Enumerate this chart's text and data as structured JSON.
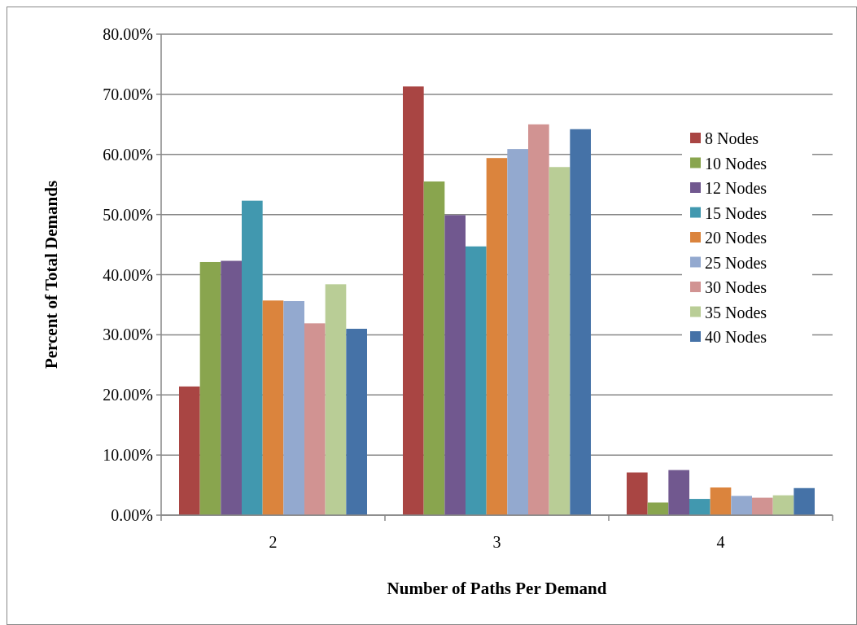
{
  "chart_data": {
    "type": "bar",
    "xlabel": "Number of Paths Per Demand",
    "ylabel": "Percent of Total Demands",
    "categories": [
      "2",
      "3",
      "4"
    ],
    "series": [
      {
        "name": "8 Nodes",
        "color": "#a94543",
        "values": [
          21.4,
          71.3,
          7.1
        ]
      },
      {
        "name": "10 Nodes",
        "color": "#89a54e",
        "values": [
          42.1,
          55.5,
          2.1
        ]
      },
      {
        "name": "12 Nodes",
        "color": "#71588f",
        "values": [
          42.3,
          49.9,
          7.5
        ]
      },
      {
        "name": "15 Nodes",
        "color": "#4198af",
        "values": [
          52.3,
          44.7,
          2.7
        ]
      },
      {
        "name": "20 Nodes",
        "color": "#db843d",
        "values": [
          35.7,
          59.4,
          4.6
        ]
      },
      {
        "name": "25 Nodes",
        "color": "#93a9cf",
        "values": [
          35.6,
          60.9,
          3.2
        ]
      },
      {
        "name": "30 Nodes",
        "color": "#d19392",
        "values": [
          31.9,
          65.0,
          2.9
        ]
      },
      {
        "name": "35 Nodes",
        "color": "#b9cd96",
        "values": [
          38.4,
          57.9,
          3.3
        ]
      },
      {
        "name": "40 Nodes",
        "color": "#4572a7",
        "values": [
          31.0,
          64.2,
          4.5
        ]
      }
    ],
    "ylim": [
      0,
      80
    ],
    "yticks": [
      {
        "value": 0,
        "label": "0.00%"
      },
      {
        "value": 10,
        "label": "10.00%"
      },
      {
        "value": 20,
        "label": "20.00%"
      },
      {
        "value": 30,
        "label": "30.00%"
      },
      {
        "value": 40,
        "label": "40.00%"
      },
      {
        "value": 50,
        "label": "50.00%"
      },
      {
        "value": 60,
        "label": "60.00%"
      },
      {
        "value": 70,
        "label": "70.00%"
      },
      {
        "value": 80,
        "label": "80.00%"
      }
    ],
    "grid": "y",
    "legend": "right"
  }
}
